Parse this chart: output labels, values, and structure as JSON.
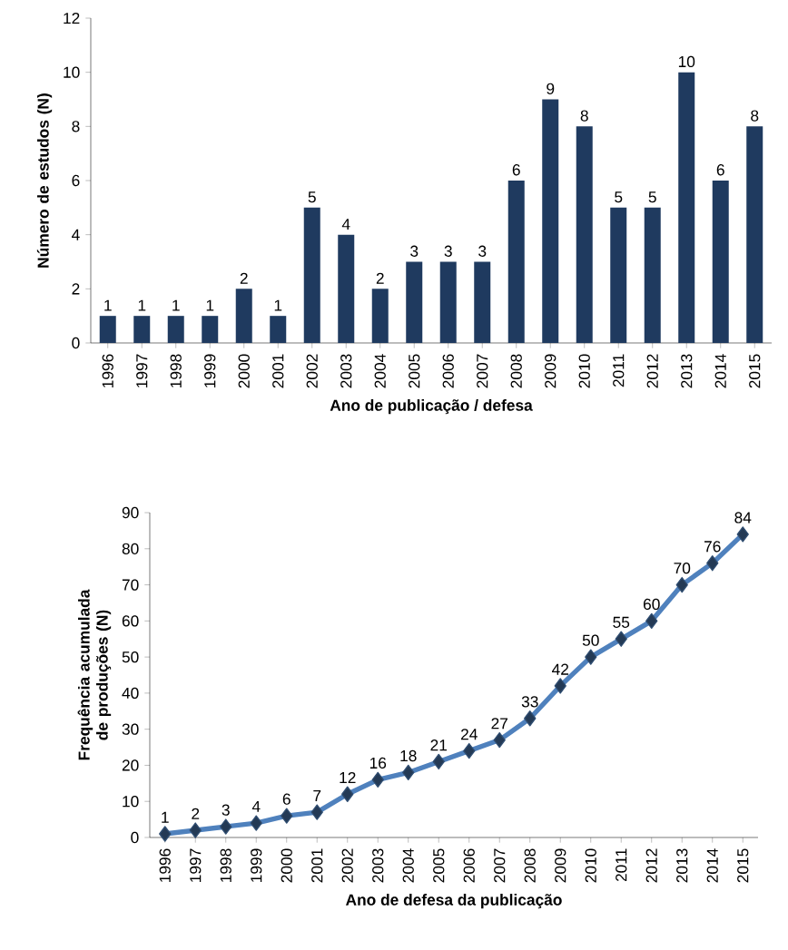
{
  "chart_data": [
    {
      "type": "bar",
      "xlabel": "Ano de publicação / defesa",
      "ylabel": "Número de estudos (N)",
      "categories": [
        "1996",
        "1997",
        "1998",
        "1999",
        "2000",
        "2001",
        "2002",
        "2003",
        "2004",
        "2005",
        "2006",
        "2007",
        "2008",
        "2009",
        "2010",
        "2011",
        "2012",
        "2013",
        "2014",
        "2015"
      ],
      "values": [
        1,
        1,
        1,
        1,
        2,
        1,
        5,
        4,
        2,
        3,
        3,
        3,
        6,
        9,
        8,
        5,
        5,
        10,
        6,
        8
      ],
      "color": "#1f3a5f",
      "ylim": [
        0,
        12
      ],
      "yticks": [
        0,
        2,
        4,
        6,
        8,
        10,
        12
      ],
      "data_labels": true
    },
    {
      "type": "line",
      "xlabel": "Ano de defesa da publicação",
      "ylabel": "Frequência acumulada de produções (N)",
      "categories": [
        "1996",
        "1997",
        "1998",
        "1999",
        "2000",
        "2001",
        "2002",
        "2003",
        "2004",
        "2005",
        "2006",
        "2007",
        "2008",
        "2009",
        "2010",
        "2011",
        "2012",
        "2013",
        "2014",
        "2015"
      ],
      "values": [
        1,
        2,
        3,
        4,
        6,
        7,
        12,
        16,
        18,
        21,
        24,
        27,
        33,
        42,
        50,
        55,
        60,
        70,
        76,
        84
      ],
      "color": "#4f81bd",
      "marker": "diamond",
      "line_style": "solid",
      "ylim": [
        0,
        90
      ],
      "yticks": [
        0,
        10,
        20,
        30,
        40,
        50,
        60,
        70,
        80,
        90
      ],
      "data_labels": true
    }
  ]
}
